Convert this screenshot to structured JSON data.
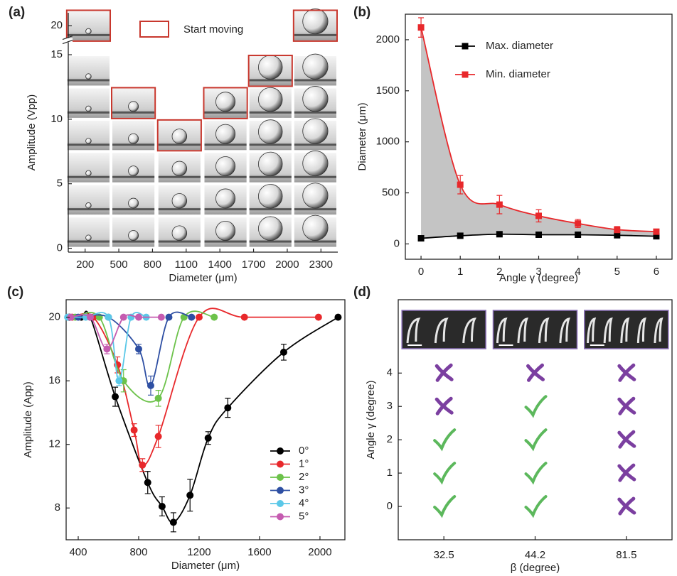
{
  "chart_data": [
    {
      "type": "droplet-grid",
      "panel": "(a)",
      "x_label": "Diameter (μm)",
      "y_label": "Amplitude (Vpp)",
      "xlim": [
        50,
        2450
      ],
      "xticks": [
        200,
        500,
        800,
        1100,
        1400,
        1700,
        2000,
        2300
      ],
      "ylim": [
        -0.3,
        21
      ],
      "ybreak": [
        16,
        19
      ],
      "yticks": [
        0,
        5,
        10,
        15,
        20
      ],
      "rows": [
        1.25,
        3.75,
        6.25,
        8.75,
        11.25,
        13.75
      ],
      "series": [
        {
          "name": "Start moving",
          "color": "#c8372d",
          "x": [
            230,
            630,
            1040,
            1450,
            1850,
            2250
          ],
          "values": [
            20,
            11.25,
            8.75,
            11.25,
            13.75,
            20
          ]
        }
      ]
    },
    {
      "type": "line",
      "panel": "(b)",
      "x_label": "Angle γ (degree)",
      "y_label": "Diameter (μm)",
      "x": [
        0,
        1,
        2,
        3,
        4,
        5,
        6
      ],
      "xlim": [
        -0.4,
        6.4
      ],
      "xticks": [
        0,
        1,
        2,
        3,
        4,
        5,
        6
      ],
      "ylim": [
        -150,
        2250
      ],
      "yticks": [
        0,
        500,
        1000,
        1500,
        2000
      ],
      "fill_between": true,
      "fill_color": "#c4c4c4",
      "legend": "upper right",
      "series": [
        {
          "name": "Max. diameter",
          "color": "#000000",
          "values": [
            55,
            80,
            95,
            90,
            90,
            85,
            75
          ],
          "errors": [
            15,
            15,
            15,
            15,
            15,
            15,
            15
          ]
        },
        {
          "name": "Min. diameter",
          "color": "#e8282b",
          "values": [
            2120,
            580,
            385,
            275,
            200,
            140,
            120
          ],
          "errors": [
            95,
            90,
            90,
            60,
            40,
            30,
            20
          ]
        }
      ]
    },
    {
      "type": "scatter-fit",
      "panel": "(c)",
      "x_label": "Diameter (μm)",
      "y_label": "Amplitude (App)",
      "xlim": [
        320,
        2165
      ],
      "xticks": [
        400,
        800,
        1200,
        1600,
        2000
      ],
      "ylim": [
        6.0,
        21.1
      ],
      "yticks": [
        8,
        12,
        16,
        20
      ],
      "legend": "lower right",
      "series": [
        {
          "name": "0°",
          "color": "#000000",
          "x": [
            340,
            420,
            480,
            645,
            860,
            955,
            1030,
            1140,
            1260,
            1390,
            1760,
            2120
          ],
          "values": [
            20,
            20,
            20,
            15.0,
            9.6,
            8.1,
            7.1,
            8.8,
            12.4,
            14.3,
            17.8,
            20
          ],
          "errors": [
            0,
            0,
            0,
            0.6,
            0.7,
            0.6,
            0.6,
            1.0,
            0.4,
            0.6,
            0.5,
            0
          ]
        },
        {
          "name": "1°",
          "color": "#e8282b",
          "x": [
            360,
            500,
            660,
            770,
            825,
            930,
            1200,
            1500,
            1990
          ],
          "values": [
            20,
            20,
            17.0,
            12.9,
            10.7,
            12.5,
            20,
            20,
            20
          ],
          "errors": [
            0,
            0,
            0.5,
            0.4,
            0.4,
            0.7,
            0,
            0,
            0
          ]
        },
        {
          "name": "2°",
          "color": "#6cc24a",
          "x": [
            380,
            540,
            700,
            930,
            1100,
            1300
          ],
          "values": [
            20,
            20,
            16.0,
            14.9,
            20,
            20
          ],
          "errors": [
            0,
            0,
            0.7,
            0.5,
            0,
            0
          ]
        },
        {
          "name": "3°",
          "color": "#2e4fa3",
          "x": [
            400,
            600,
            800,
            880,
            1000,
            1150
          ],
          "values": [
            20,
            20,
            18.0,
            15.7,
            20,
            20
          ],
          "errors": [
            0,
            0,
            0.3,
            0.6,
            0,
            0
          ]
        },
        {
          "name": "4°",
          "color": "#5bc8e8",
          "x": [
            330,
            450,
            600,
            670,
            750,
            850
          ],
          "values": [
            20,
            20,
            20,
            16.0,
            20,
            20
          ],
          "errors": [
            0,
            0,
            0,
            0.3,
            0,
            0
          ]
        },
        {
          "name": "5°",
          "color": "#c55bb0",
          "x": [
            350,
            480,
            590,
            700,
            800,
            950
          ],
          "values": [
            20,
            20,
            18.0,
            20,
            20,
            20
          ],
          "errors": [
            0,
            0,
            0.3,
            0,
            0,
            0
          ]
        }
      ]
    },
    {
      "type": "check-matrix",
      "panel": "(d)",
      "x_label": "β (degree)",
      "y_label": "Angle γ (degree)",
      "categories": [
        "32.5",
        "44.2",
        "81.5"
      ],
      "ylim": [
        -1,
        6.2
      ],
      "yticks": [
        0,
        1,
        2,
        3,
        4
      ],
      "check_color": "#5cb85c",
      "cross_color": "#7b3fa0",
      "moves": [
        [
          true,
          true,
          true,
          false,
          false
        ],
        [
          true,
          true,
          true,
          true,
          false
        ],
        [
          false,
          false,
          false,
          false,
          false
        ]
      ]
    }
  ]
}
